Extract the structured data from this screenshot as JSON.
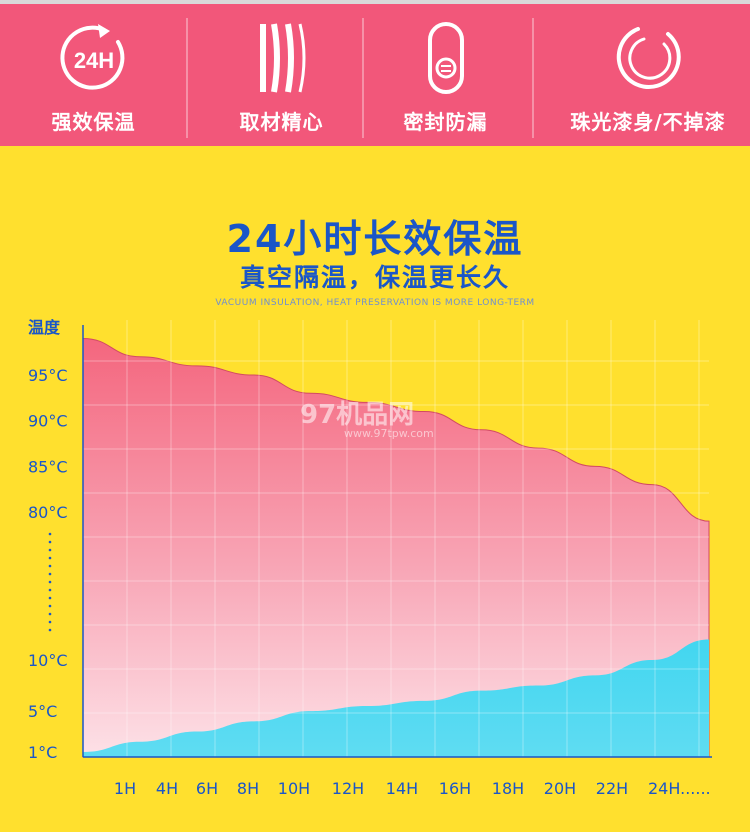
{
  "features": [
    {
      "label": "强效保温",
      "icon": "24h-clock-icon",
      "icon_text": "24H"
    },
    {
      "label": "取材精心",
      "icon": "material-layers-icon"
    },
    {
      "label": "密封防漏",
      "icon": "seal-lid-icon"
    },
    {
      "label": "珠光漆身/不掉漆",
      "icon": "ring-icon"
    }
  ],
  "colors": {
    "topbar": "#f2577a",
    "background": "#ffe02e",
    "title": "#1a56c8",
    "hot_fill_top": "#f4667e",
    "hot_fill_bottom": "#fbd0da",
    "cold_fill": "#3fd3ee",
    "axis_text": "#1a56c8"
  },
  "watermark": {
    "text": "97机品网",
    "url": "www.97tpw.com"
  },
  "chart_data": {
    "type": "area",
    "title": "24小时长效保温",
    "subtitle": "真空隔温，保温更长久",
    "subtitle_en": "VACUUM INSULATION, HEAT PRESERVATION IS MORE LONG-TERM",
    "ylabel": "温度",
    "categories": [
      "1H",
      "4H",
      "6H",
      "8H",
      "10H",
      "12H",
      "14H",
      "16H",
      "18H",
      "20H",
      "22H",
      "24H......"
    ],
    "upper_yticks": [
      "95°C",
      "90°C",
      "85°C",
      "80°C"
    ],
    "lower_yticks": [
      "10°C",
      "5°C",
      "1°C"
    ],
    "axis_break": "dotted",
    "series": [
      {
        "name": "",
        "values": [
          99,
          97,
          96,
          95,
          93,
          92,
          91,
          89,
          87,
          85,
          83,
          79
        ]
      },
      {
        "name": "",
        "values": [
          1,
          2,
          3,
          4,
          5,
          5.5,
          6,
          7,
          7.5,
          8.5,
          10,
          12
        ]
      }
    ]
  }
}
